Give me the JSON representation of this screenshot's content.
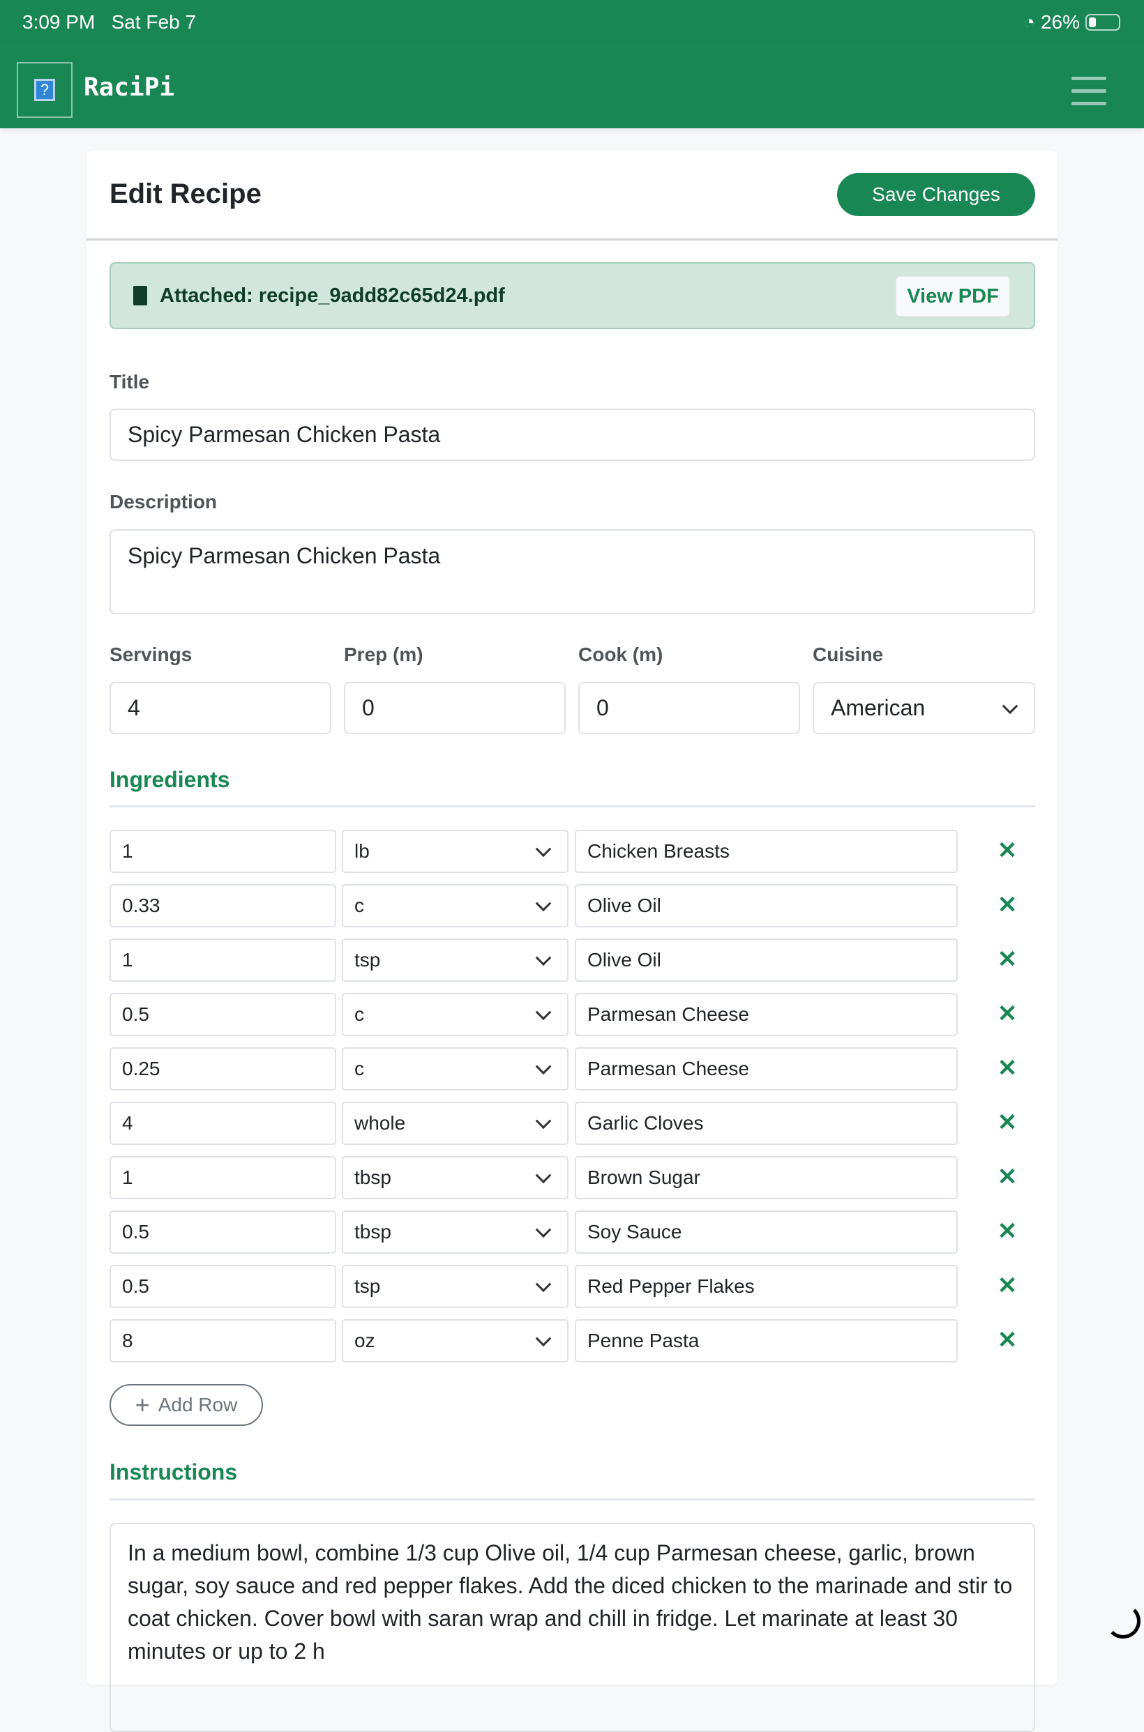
{
  "status_bar": {
    "time": "3:09 PM",
    "date": "Sat Feb 7",
    "battery": "26%"
  },
  "nav": {
    "brand": "RaciPi",
    "logo_glyph": "?"
  },
  "page": {
    "title": "Edit Recipe",
    "save_label": "Save Changes"
  },
  "attachment": {
    "text": "Attached: recipe_9add82c65d24.pdf",
    "view_label": "View PDF"
  },
  "form": {
    "title_label": "Title",
    "title_value": "Spicy Parmesan Chicken Pasta",
    "description_label": "Description",
    "description_value": "Spicy Parmesan Chicken Pasta",
    "servings_label": "Servings",
    "servings_value": "4",
    "prep_label": "Prep (m)",
    "prep_value": "0",
    "cook_label": "Cook (m)",
    "cook_value": "0",
    "cuisine_label": "Cuisine",
    "cuisine_value": "American"
  },
  "ingredients": {
    "heading": "Ingredients",
    "rows": [
      {
        "qty": "1",
        "unit": "lb",
        "name": "Chicken Breasts"
      },
      {
        "qty": "0.33",
        "unit": "c",
        "name": "Olive Oil"
      },
      {
        "qty": "1",
        "unit": "tsp",
        "name": "Olive Oil"
      },
      {
        "qty": "0.5",
        "unit": "c",
        "name": "Parmesan Cheese"
      },
      {
        "qty": "0.25",
        "unit": "c",
        "name": "Parmesan Cheese"
      },
      {
        "qty": "4",
        "unit": "whole",
        "name": "Garlic Cloves"
      },
      {
        "qty": "1",
        "unit": "tbsp",
        "name": "Brown Sugar"
      },
      {
        "qty": "0.5",
        "unit": "tbsp",
        "name": "Soy Sauce"
      },
      {
        "qty": "0.5",
        "unit": "tsp",
        "name": "Red Pepper Flakes"
      },
      {
        "qty": "8",
        "unit": "oz",
        "name": "Penne Pasta"
      }
    ],
    "add_label": "Add Row"
  },
  "instructions": {
    "heading": "Instructions",
    "text": "In a medium bowl, combine 1/3 cup Olive oil, 1/4 cup Parmesan cheese, garlic, brown sugar, soy sauce and red pepper flakes. Add the diced chicken to the marinade and stir to coat chicken. Cover bowl with saran wrap and chill in fridge. Let marinate at least 30 minutes or up to 2 h"
  },
  "colors": {
    "primary": "#198754",
    "alert_bg": "#d1e7dd"
  }
}
